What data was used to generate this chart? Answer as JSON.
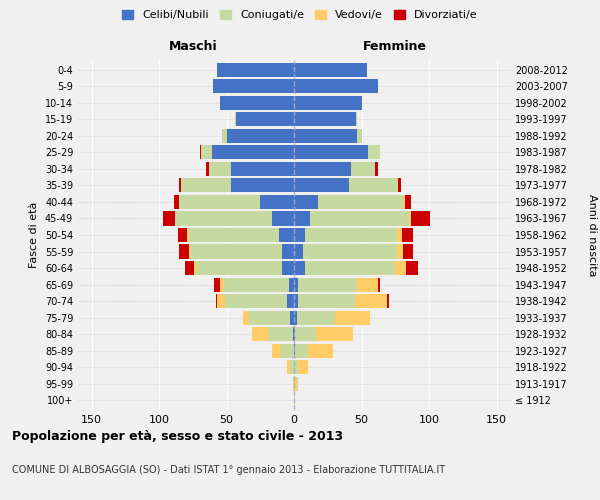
{
  "age_groups": [
    "100+",
    "95-99",
    "90-94",
    "85-89",
    "80-84",
    "75-79",
    "70-74",
    "65-69",
    "60-64",
    "55-59",
    "50-54",
    "45-49",
    "40-44",
    "35-39",
    "30-34",
    "25-29",
    "20-24",
    "15-19",
    "10-14",
    "5-9",
    "0-4"
  ],
  "birth_years": [
    "≤ 1912",
    "1913-1917",
    "1918-1922",
    "1923-1927",
    "1928-1932",
    "1933-1937",
    "1938-1942",
    "1943-1947",
    "1948-1952",
    "1953-1957",
    "1958-1962",
    "1963-1967",
    "1968-1972",
    "1973-1977",
    "1978-1982",
    "1983-1987",
    "1988-1992",
    "1993-1997",
    "1998-2002",
    "2003-2007",
    "2008-2012"
  ],
  "colors": {
    "celibi": "#4472C4",
    "coniugati": "#C5D9A0",
    "vedovi": "#FFCC66",
    "divorziati": "#CC0000"
  },
  "maschi": {
    "celibi": [
      0,
      0,
      0,
      0,
      1,
      3,
      5,
      4,
      9,
      9,
      11,
      16,
      25,
      47,
      47,
      61,
      50,
      43,
      55,
      60,
      57
    ],
    "coniugati": [
      0,
      1,
      3,
      10,
      18,
      30,
      46,
      48,
      63,
      68,
      67,
      72,
      60,
      37,
      16,
      8,
      3,
      1,
      0,
      0,
      0
    ],
    "vedovi": [
      0,
      0,
      2,
      6,
      12,
      5,
      6,
      3,
      2,
      1,
      1,
      0,
      0,
      0,
      0,
      0,
      0,
      0,
      0,
      0,
      0
    ],
    "divorziati": [
      0,
      0,
      0,
      0,
      0,
      0,
      1,
      4,
      7,
      7,
      7,
      9,
      4,
      1,
      2,
      1,
      0,
      0,
      0,
      0,
      0
    ]
  },
  "femmine": {
    "nubili": [
      0,
      0,
      0,
      1,
      1,
      2,
      3,
      3,
      8,
      7,
      8,
      12,
      18,
      41,
      42,
      55,
      47,
      46,
      50,
      62,
      54
    ],
    "coniugate": [
      0,
      1,
      3,
      9,
      15,
      28,
      42,
      44,
      67,
      69,
      68,
      73,
      63,
      36,
      18,
      9,
      3,
      1,
      0,
      0,
      0
    ],
    "vedove": [
      1,
      2,
      7,
      19,
      28,
      26,
      24,
      15,
      8,
      5,
      4,
      2,
      1,
      0,
      0,
      0,
      0,
      0,
      0,
      0,
      0
    ],
    "divorziate": [
      0,
      0,
      0,
      0,
      0,
      0,
      1,
      2,
      9,
      7,
      8,
      14,
      5,
      2,
      2,
      0,
      0,
      0,
      0,
      0,
      0
    ]
  },
  "xlim": 160,
  "title_main": "Popolazione per età, sesso e stato civile - 2013",
  "title_sub": "COMUNE DI ALBOSAGGIA (SO) - Dati ISTAT 1° gennaio 2013 - Elaborazione TUTTITALIA.IT",
  "ylabel": "Fasce di età",
  "ylabel_right": "Anni di nascita",
  "legend_labels": [
    "Celibi/Nubili",
    "Coniugati/e",
    "Vedovi/e",
    "Divorziati/e"
  ],
  "bg_color": "#f0f0f0",
  "bar_height": 0.85
}
